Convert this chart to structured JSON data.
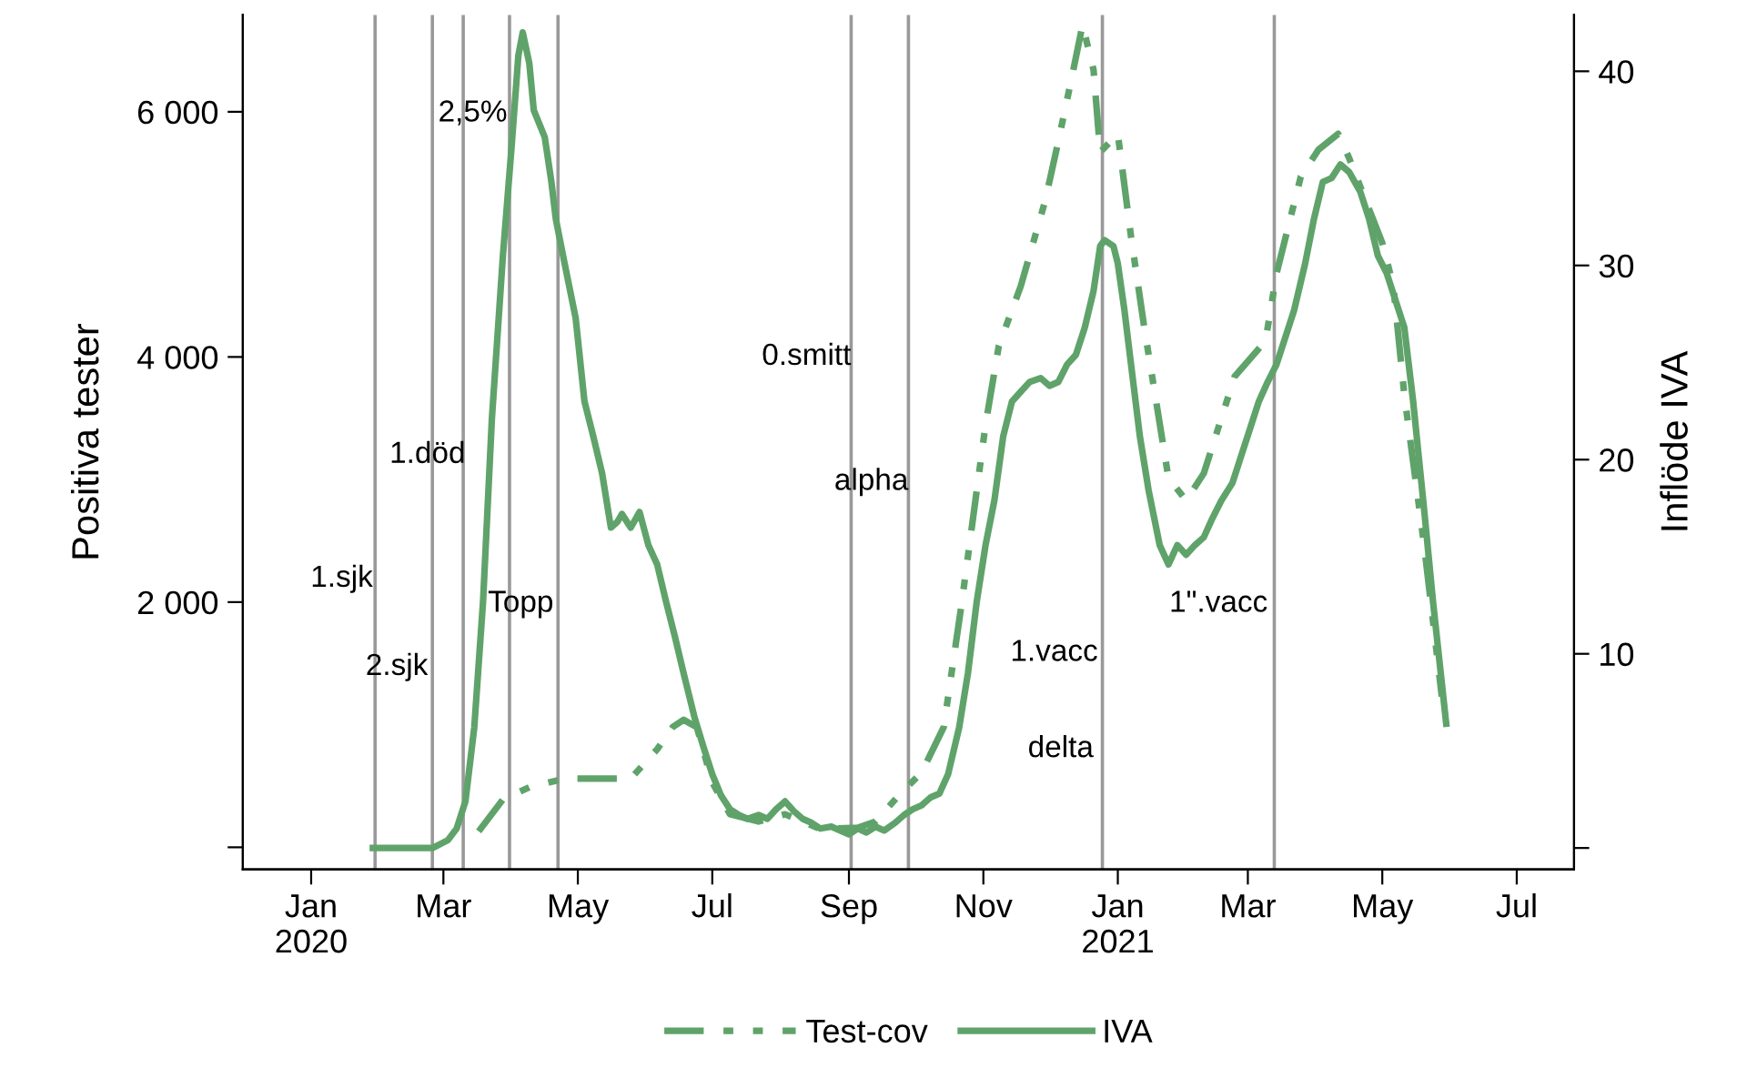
{
  "chart_data": {
    "type": "line",
    "xlim": [
      "2019-12-01",
      "2021-07-27"
    ],
    "xticks": [
      {
        "value": "2020-01-01",
        "label": "Jan\n2020"
      },
      {
        "value": "2020-03-01",
        "label": "Mar"
      },
      {
        "value": "2020-05-01",
        "label": "May"
      },
      {
        "value": "2020-07-01",
        "label": "Jul"
      },
      {
        "value": "2020-09-01",
        "label": "Sep"
      },
      {
        "value": "2020-11-01",
        "label": "Nov"
      },
      {
        "value": "2021-01-01",
        "label": "Jan\n2021"
      },
      {
        "value": "2021-03-01",
        "label": "Mar"
      },
      {
        "value": "2021-05-01",
        "label": "May"
      },
      {
        "value": "2021-07-01",
        "label": "Jul"
      }
    ],
    "ylabel": "Positiva tester",
    "y2label": "Inflöde IVA",
    "ylim": [
      -180,
      6790
    ],
    "yticks": [
      {
        "value": 0,
        "label": null
      },
      {
        "value": 2000,
        "label": "2 000"
      },
      {
        "value": 4000,
        "label": "4 000"
      },
      {
        "value": 6000,
        "label": "6 000"
      }
    ],
    "y2lim": [
      -1.1,
      42.9
    ],
    "y2ticks": [
      {
        "value": 0,
        "label": null
      },
      10,
      20,
      30,
      40
    ],
    "grid": false,
    "legend": "bottom",
    "marker": "none",
    "series": [
      {
        "name": "Test-cov",
        "color": "#5fa36a",
        "line_style": "dashed",
        "x": [
          "2020-03-17",
          "2020-03-28",
          "2020-04-09",
          "2020-04-25",
          "2020-05-12",
          "2020-05-25",
          "2020-06-06",
          "2020-06-13",
          "2020-06-18",
          "2020-06-24",
          "2020-07-01",
          "2020-07-09",
          "2020-07-22",
          "2020-08-03",
          "2020-08-19",
          "2020-09-05",
          "2020-09-13",
          "2020-09-24",
          "2020-10-04",
          "2020-10-14",
          "2020-10-22",
          "2020-11-02",
          "2020-11-08",
          "2020-11-18",
          "2020-11-29",
          "2020-12-05",
          "2020-12-11",
          "2020-12-16",
          "2020-12-21",
          "2020-12-24",
          "2021-01-01",
          "2021-01-07",
          "2021-01-13",
          "2021-01-24",
          "2021-02-01",
          "2021-02-09",
          "2021-02-23",
          "2021-03-09",
          "2021-03-14",
          "2021-03-25",
          "2021-04-02",
          "2021-04-11",
          "2021-04-16",
          "2021-05-01",
          "2021-05-06",
          "2021-05-11",
          "2021-05-20",
          "2021-05-28"
        ],
        "values": [
          130,
          390,
          490,
          560,
          560,
          560,
          800,
          980,
          1040,
          980,
          530,
          270,
          210,
          270,
          150,
          160,
          210,
          430,
          610,
          980,
          1970,
          3450,
          4090,
          4580,
          5270,
          5760,
          6270,
          6710,
          6340,
          5670,
          5820,
          4980,
          4240,
          3010,
          2830,
          3050,
          3840,
          4130,
          4680,
          5470,
          5690,
          5820,
          5620,
          4930,
          4580,
          3690,
          2460,
          1230
        ]
      },
      {
        "name": "IVA",
        "color": "#5fa36a",
        "line_style": "solid",
        "axis": "y2",
        "x": [
          "2020-01-29",
          "2020-02-25",
          "2020-03-03",
          "2020-03-07",
          "2020-03-11",
          "2020-03-15",
          "2020-03-19",
          "2020-03-23",
          "2020-03-28",
          "2020-04-01",
          "2020-04-04",
          "2020-04-06",
          "2020-04-09",
          "2020-04-11",
          "2020-04-16",
          "2020-04-19",
          "2020-04-21",
          "2020-04-25",
          "2020-04-30",
          "2020-05-04",
          "2020-05-08",
          "2020-05-12",
          "2020-05-16",
          "2020-05-19",
          "2020-05-21",
          "2020-05-25",
          "2020-05-29",
          "2020-06-02",
          "2020-06-06",
          "2020-06-10",
          "2020-06-14",
          "2020-06-18",
          "2020-06-23",
          "2020-06-27",
          "2020-07-01",
          "2020-07-05",
          "2020-07-09",
          "2020-07-13",
          "2020-07-17",
          "2020-07-22",
          "2020-07-26",
          "2020-07-30",
          "2020-08-03",
          "2020-08-07",
          "2020-08-11",
          "2020-08-15",
          "2020-08-19",
          "2020-08-24",
          "2020-08-28",
          "2020-09-01",
          "2020-09-05",
          "2020-09-09",
          "2020-09-13",
          "2020-09-17",
          "2020-09-22",
          "2020-09-26",
          "2020-09-30",
          "2020-10-04",
          "2020-10-08",
          "2020-10-12",
          "2020-10-16",
          "2020-10-21",
          "2020-10-25",
          "2020-10-29",
          "2020-11-02",
          "2020-11-06",
          "2020-11-10",
          "2020-11-14",
          "2020-11-18",
          "2020-11-22",
          "2020-11-27",
          "2020-12-01",
          "2020-12-05",
          "2020-12-09",
          "2020-12-13",
          "2020-12-17",
          "2020-12-21",
          "2020-12-24",
          "2020-12-26",
          "2020-12-30",
          "2021-01-01",
          "2021-01-04",
          "2021-01-07",
          "2021-01-11",
          "2021-01-15",
          "2021-01-20",
          "2021-01-24",
          "2021-01-28",
          "2021-02-01",
          "2021-02-05",
          "2021-02-09",
          "2021-02-13",
          "2021-02-17",
          "2021-02-22",
          "2021-02-26",
          "2021-03-02",
          "2021-03-06",
          "2021-03-10",
          "2021-03-14",
          "2021-03-18",
          "2021-03-22",
          "2021-03-27",
          "2021-03-31",
          "2021-04-04",
          "2021-04-08",
          "2021-04-12",
          "2021-04-16",
          "2021-04-21",
          "2021-04-25",
          "2021-04-29",
          "2021-05-03",
          "2021-05-07",
          "2021-05-11",
          "2021-05-15",
          "2021-05-20",
          "2021-05-24",
          "2021-05-28",
          "2021-05-30"
        ],
        "values": [
          0,
          0,
          0.4,
          1.0,
          2.4,
          6.2,
          12.7,
          22.1,
          30.5,
          36.2,
          40.8,
          42.0,
          40.4,
          38.0,
          36.6,
          34.3,
          32.4,
          30.1,
          27.3,
          23.0,
          21.2,
          19.3,
          16.5,
          16.8,
          17.2,
          16.5,
          17.3,
          15.6,
          14.6,
          12.7,
          10.9,
          9.0,
          6.7,
          5.2,
          3.8,
          2.7,
          2.0,
          1.7,
          1.5,
          1.7,
          1.5,
          2.0,
          2.4,
          1.9,
          1.5,
          1.3,
          1.0,
          1.1,
          0.9,
          0.7,
          1.0,
          0.8,
          1.1,
          0.9,
          1.3,
          1.7,
          2.0,
          2.2,
          2.6,
          2.8,
          3.8,
          6.2,
          9.0,
          12.7,
          15.6,
          17.9,
          21.2,
          23.0,
          23.5,
          24.0,
          24.2,
          23.8,
          24.0,
          24.9,
          25.4,
          26.8,
          28.7,
          31.0,
          31.3,
          31.0,
          30.1,
          27.7,
          24.9,
          21.2,
          18.4,
          15.6,
          14.6,
          15.6,
          15.1,
          15.6,
          16.0,
          17.0,
          17.9,
          18.8,
          20.2,
          21.6,
          23.0,
          24.0,
          24.9,
          26.3,
          27.7,
          30.1,
          32.4,
          34.3,
          34.5,
          35.2,
          34.8,
          33.8,
          32.4,
          30.5,
          29.6,
          28.2,
          26.8,
          23.0,
          17.4,
          12.7,
          8.5,
          6.4
        ]
      }
    ],
    "ref_lines": [
      {
        "axis": "x",
        "value": "2020-01-30",
        "color": "#999999"
      },
      {
        "axis": "x",
        "value": "2020-02-25",
        "color": "#999999"
      },
      {
        "axis": "x",
        "value": "2020-03-10",
        "color": "#999999"
      },
      {
        "axis": "x",
        "value": "2020-03-31",
        "color": "#999999"
      },
      {
        "axis": "x",
        "value": "2020-04-22",
        "color": "#999999"
      },
      {
        "axis": "x",
        "value": "2020-09-02",
        "color": "#999999"
      },
      {
        "axis": "x",
        "value": "2020-09-28",
        "color": "#999999"
      },
      {
        "axis": "x",
        "value": "2020-12-25",
        "color": "#999999"
      },
      {
        "axis": "x",
        "value": "2021-03-13",
        "color": "#999999"
      }
    ],
    "annotations": [
      {
        "text": "1.sjk",
        "x": "2020-01-29",
        "y": 2190
      },
      {
        "text": "2.sjk",
        "x": "2020-02-23",
        "y": 1470
      },
      {
        "text": "1.död",
        "x": "2020-03-11",
        "y": 3200
      },
      {
        "text": "2,5%",
        "x": "2020-03-30",
        "y": 5985
      },
      {
        "text": "Topp",
        "x": "2020-04-20",
        "y": 1985
      },
      {
        "text": "0.smitt",
        "x": "2020-09-02",
        "y": 4000
      },
      {
        "text": "alpha",
        "x": "2020-09-28",
        "y": 2980
      },
      {
        "text": "1.vacc",
        "x": "2020-12-23",
        "y": 1585
      },
      {
        "text": "delta",
        "x": "2020-12-21",
        "y": 800
      },
      {
        "text": "1\".vacc",
        "x": "2021-03-10",
        "y": 1985
      }
    ]
  }
}
